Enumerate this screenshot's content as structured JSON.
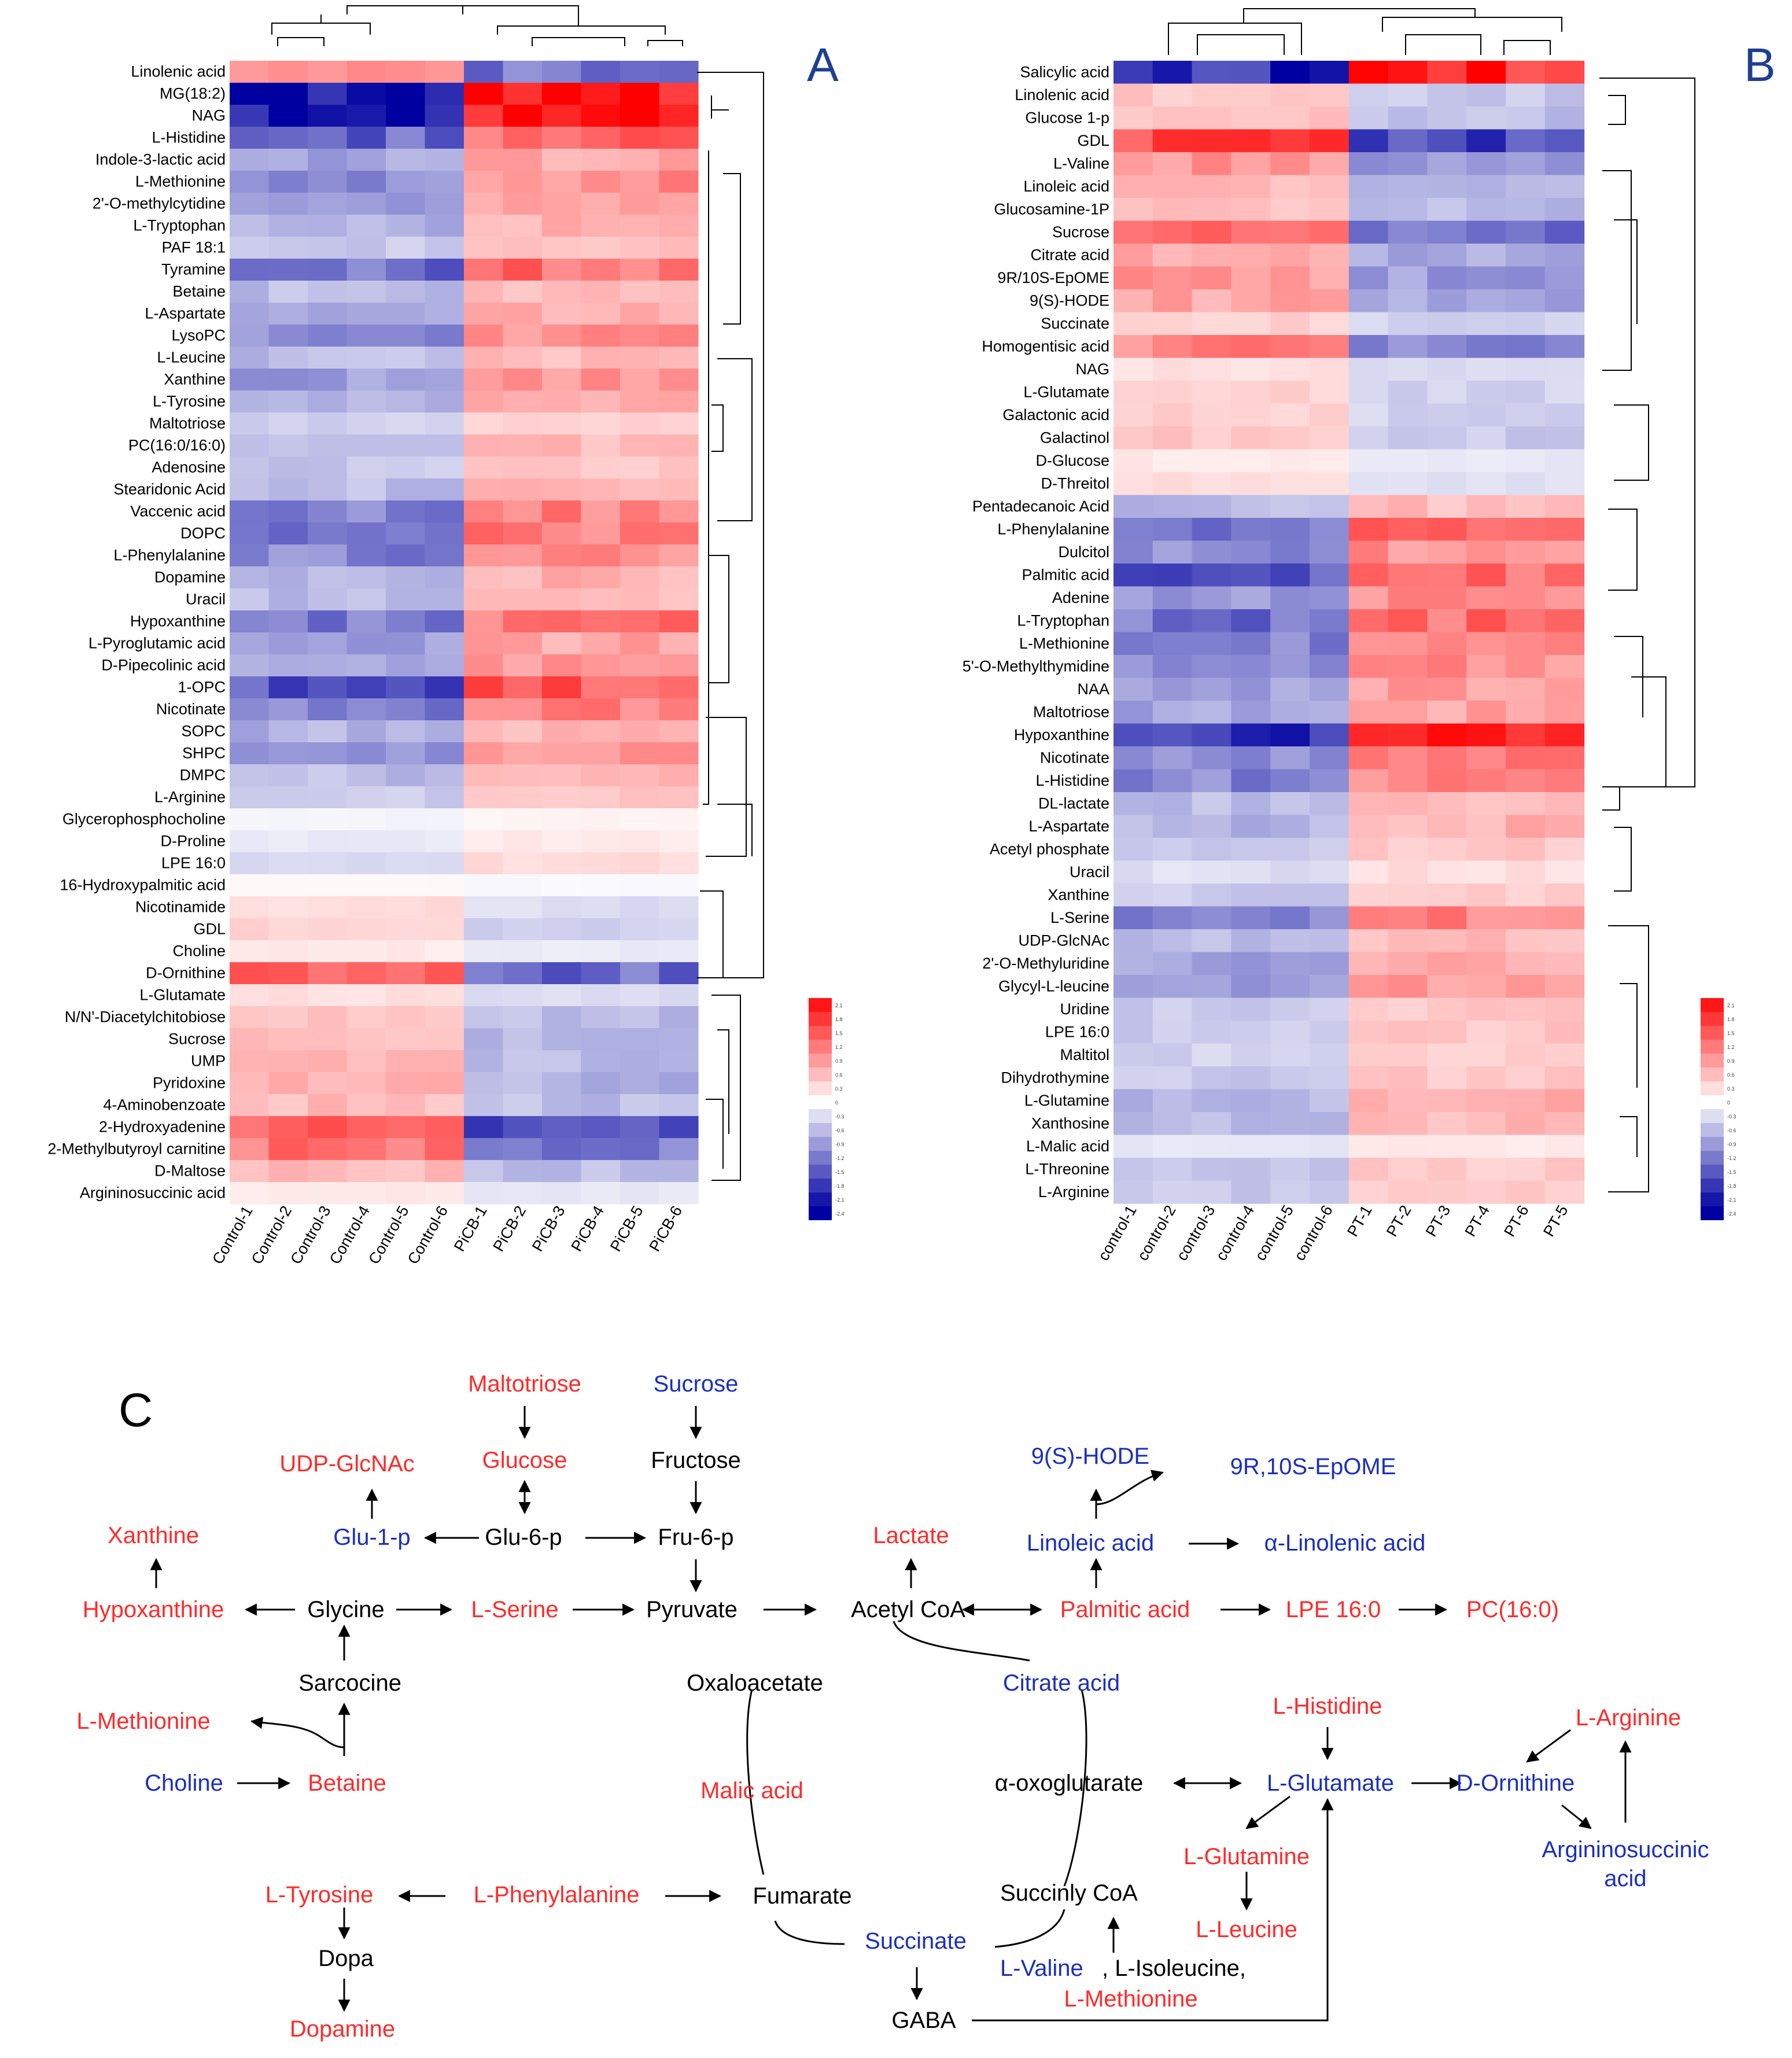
{
  "colors": {
    "up": "#ff0000",
    "down": "#0000a0",
    "neutral": "#ffffff",
    "text_red": "#ff2a2a",
    "text_blue": "#1a2fbf",
    "text_black": "#000000",
    "panel_letter": "#1f3f8f"
  },
  "chart_data": [
    {
      "panel": "A",
      "type": "heatmap",
      "columns": [
        "Control-1",
        "Control-2",
        "Control-3",
        "Control-4",
        "Control-5",
        "Control-6",
        "PiCB-1",
        "PiCB-2",
        "PiCB-3",
        "PiCB-4",
        "PiCB-5",
        "PiCB-6"
      ],
      "rows": [
        "Linolenic acid",
        "MG(18:2)",
        "NAG",
        "L-Histidine",
        "Indole-3-lactic acid",
        "L-Methionine",
        "2'-O-methylcytidine",
        "L-Tryptophan",
        "PAF 18:1",
        "Tyramine",
        "Betaine",
        "L-Aspartate",
        "LysoPC",
        "L-Leucine",
        "Xanthine",
        "L-Tyrosine",
        "Maltotriose",
        "PC(16:0/16:0)",
        "Adenosine",
        "Stearidonic Acid",
        "Vaccenic acid",
        "DOPC",
        "L-Phenylalanine",
        "Dopamine",
        "Uracil",
        "Hypoxanthine",
        "L-Pyroglutamic acid",
        "D-Pipecolinic acid",
        "1-OPC",
        "Nicotinate",
        "SOPC",
        "SHPC",
        "DMPC",
        "L-Arginine",
        "Glycerophosphocholine",
        "D-Proline",
        "LPE 16:0",
        "16-Hydroxypalmitic acid",
        "Nicotinamide",
        "GDL",
        "Choline",
        "D-Ornithine",
        "L-Glutamate",
        "N/N'-Diacetylchitobiose",
        "Sucrose",
        "UMP",
        "Pyridoxine",
        "4-Aminobenzoate",
        "2-Hydroxyadenine",
        "2-Methylbutyroyl carnitine",
        "D-Maltose",
        "Argininosuccinic acid"
      ],
      "row_means": [
        1.2,
        -2.3,
        -2.3,
        -1.4,
        -0.8,
        -1.0,
        -0.8,
        -0.7,
        -0.5,
        -1.3,
        -0.6,
        -0.7,
        -1.0,
        -0.6,
        -0.9,
        -0.7,
        -0.4,
        -0.6,
        -0.5,
        -0.6,
        -1.1,
        -1.2,
        -1.1,
        -0.7,
        -0.6,
        -1.2,
        -0.8,
        -0.9,
        -1.5,
        -1.1,
        -0.7,
        -0.9,
        -0.6,
        -0.5,
        -0.1,
        -0.2,
        -0.3,
        0.05,
        0.3,
        0.4,
        0.2,
        1.3,
        0.3,
        0.6,
        0.6,
        0.6,
        0.7,
        0.6,
        1.5,
        1.2,
        0.6,
        0.2
      ],
      "legend_ticks": [
        "2.1",
        "1.8",
        "1.5",
        "1.2",
        "0.9",
        "0.6",
        "0.3",
        "0",
        "-0.3",
        "-0.6",
        "-0.9",
        "-1.2",
        "-1.5",
        "-1.8",
        "-2.1",
        "-2.4"
      ]
    },
    {
      "panel": "B",
      "type": "heatmap",
      "columns": [
        "control-1",
        "control-2",
        "control-3",
        "control-4",
        "control-5",
        "control-6",
        "PT-1",
        "PT-2",
        "PT-3",
        "PT-4",
        "PT-6",
        "PT-5"
      ],
      "rows": [
        "Salicylic acid",
        "Linolenic acid",
        "Glucose 1-p",
        "GDL",
        "L-Valine",
        "Linoleic acid",
        "Glucosamine-1P",
        "Sucrose",
        "Citrate acid",
        "9R/10S-EpOME",
        "9(S)-HODE",
        "Succinate",
        "Homogentisic acid",
        "NAG",
        "L-Glutamate",
        "Galactonic acid",
        "Galactinol",
        "D-Glucose",
        "D-Threitol",
        "Pentadecanoic Acid",
        "L-Phenylalanine",
        "Dulcitol",
        "Palmitic acid",
        "Adenine",
        "L-Tryptophan",
        "L-Methionine",
        "5'-O-Methylthymidine",
        "NAA",
        "Maltotriose",
        "Hypoxanthine",
        "Nicotinate",
        "L-Histidine",
        "DL-lactate",
        "L-Aspartate",
        "Acetyl phosphate",
        "Uracil",
        "Xanthine",
        "L-Serine",
        "UDP-GlcNAc",
        "2'-O-Methyluridine",
        "Glycyl-L-leucine",
        "Uridine",
        "LPE 16:0",
        "Maltitol",
        "Dihydrothymine",
        "L-Glutamine",
        "Xanthosine",
        "L-Malic acid",
        "L-Threonine",
        "L-Arginine"
      ],
      "row_means": [
        -2.0,
        0.5,
        0.6,
        1.6,
        0.9,
        0.6,
        0.6,
        1.2,
        0.8,
        0.9,
        0.8,
        0.4,
        1.1,
        0.3,
        0.4,
        0.4,
        0.5,
        0.2,
        0.3,
        -0.6,
        -1.3,
        -1.0,
        -1.4,
        -1.0,
        -1.3,
        -1.1,
        -1.0,
        -0.9,
        -0.8,
        -1.8,
        -1.1,
        -1.1,
        -0.6,
        -0.7,
        -0.5,
        -0.3,
        -0.5,
        -1.1,
        -0.6,
        -0.8,
        -0.9,
        -0.5,
        -0.5,
        -0.4,
        -0.5,
        -0.7,
        -0.6,
        -0.2,
        -0.5,
        -0.5
      ],
      "legend_ticks": [
        "2.1",
        "1.8",
        "1.5",
        "1.2",
        "0.9",
        "0.6",
        "0.3",
        "0",
        "-0.3",
        "-0.6",
        "-0.9",
        "-1.2",
        "-1.5",
        "-1.8",
        "-2.1",
        "-2.4"
      ]
    }
  ],
  "panels": {
    "a": "A",
    "b": "B",
    "c": "C"
  },
  "pathway": {
    "nodes": [
      {
        "id": "maltotriose",
        "label": "Maltotriose",
        "color": "red"
      },
      {
        "id": "sucrose",
        "label": "Sucrose",
        "color": "blue"
      },
      {
        "id": "udp",
        "label": "UDP-GlcNAc",
        "color": "red"
      },
      {
        "id": "glucose",
        "label": "Glucose",
        "color": "red"
      },
      {
        "id": "fructose",
        "label": "Fructose",
        "color": "black"
      },
      {
        "id": "hode",
        "label": "9(S)-HODE",
        "color": "blue"
      },
      {
        "id": "epome",
        "label": "9R,10S-EpOME",
        "color": "blue"
      },
      {
        "id": "xanthine",
        "label": "Xanthine",
        "color": "red"
      },
      {
        "id": "glu1p",
        "label": "Glu-1-p",
        "color": "blue"
      },
      {
        "id": "glu6p",
        "label": "Glu-6-p",
        "color": "black"
      },
      {
        "id": "fru6p",
        "label": "Fru-6-p",
        "color": "black"
      },
      {
        "id": "lactate",
        "label": "Lactate",
        "color": "red"
      },
      {
        "id": "linoleic",
        "label": "Linoleic acid",
        "color": "blue"
      },
      {
        "id": "alinolenic",
        "label": "α-Linolenic acid",
        "color": "blue"
      },
      {
        "id": "hypoxanthine",
        "label": "Hypoxanthine",
        "color": "red"
      },
      {
        "id": "glycine",
        "label": "Glycine",
        "color": "black"
      },
      {
        "id": "serine",
        "label": "L-Serine",
        "color": "red"
      },
      {
        "id": "pyruvate",
        "label": "Pyruvate",
        "color": "black"
      },
      {
        "id": "acetylcoa",
        "label": "Acetyl CoA",
        "color": "black"
      },
      {
        "id": "palmitic",
        "label": "Palmitic acid",
        "color": "red"
      },
      {
        "id": "lpe",
        "label": "LPE 16:0",
        "color": "red"
      },
      {
        "id": "pc",
        "label": "PC(16:0)",
        "color": "red"
      },
      {
        "id": "sarcocine",
        "label": "Sarcocine",
        "color": "black"
      },
      {
        "id": "oxaloacetate",
        "label": "Oxaloacetate",
        "color": "black"
      },
      {
        "id": "citrate",
        "label": "Citrate acid",
        "color": "blue"
      },
      {
        "id": "methionine1",
        "label": "L-Methionine",
        "color": "red"
      },
      {
        "id": "histidine",
        "label": "L-Histidine",
        "color": "red"
      },
      {
        "id": "arginine",
        "label": "L-Arginine",
        "color": "red"
      },
      {
        "id": "choline",
        "label": "Choline",
        "color": "blue"
      },
      {
        "id": "betaine",
        "label": "Betaine",
        "color": "red"
      },
      {
        "id": "malic",
        "label": "Malic acid",
        "color": "red"
      },
      {
        "id": "oxoglutarate",
        "label": "α-oxoglutarate",
        "color": "black"
      },
      {
        "id": "glutamate",
        "label": "L-Glutamate",
        "color": "blue"
      },
      {
        "id": "ornithine",
        "label": "D-Ornithine",
        "color": "blue"
      },
      {
        "id": "glutamine",
        "label": "L-Glutamine",
        "color": "red"
      },
      {
        "id": "argsucc1",
        "label": "Argininosuccinic",
        "color": "blue"
      },
      {
        "id": "argsucc2",
        "label": "acid",
        "color": "blue"
      },
      {
        "id": "tyrosine",
        "label": "L-Tyrosine",
        "color": "red"
      },
      {
        "id": "phenylalanine",
        "label": "L-Phenylalanine",
        "color": "red"
      },
      {
        "id": "fumarate",
        "label": "Fumarate",
        "color": "black"
      },
      {
        "id": "succinylcoa",
        "label": "Succinly CoA",
        "color": "black"
      },
      {
        "id": "leucine",
        "label": "L-Leucine",
        "color": "red"
      },
      {
        "id": "succinate",
        "label": "Succinate",
        "color": "blue"
      },
      {
        "id": "dopa",
        "label": "Dopa",
        "color": "black"
      },
      {
        "id": "valine",
        "label": "L-Valine",
        "color": "blue"
      },
      {
        "id": "isoleucine",
        "label": ", L-Isoleucine,",
        "color": "black"
      },
      {
        "id": "methionine2",
        "label": "L-Methionine",
        "color": "red"
      },
      {
        "id": "gaba",
        "label": "GABA",
        "color": "black"
      },
      {
        "id": "dopamine",
        "label": "Dopamine",
        "color": "red"
      }
    ]
  }
}
